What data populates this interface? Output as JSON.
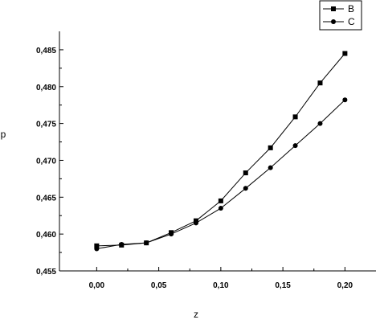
{
  "chart_data": {
    "type": "line",
    "title": "",
    "xlabel": "z",
    "ylabel": "p",
    "x": [
      0.0,
      0.02,
      0.04,
      0.06,
      0.08,
      0.1,
      0.12,
      0.14,
      0.16,
      0.18,
      0.2
    ],
    "xlim": [
      -0.03,
      0.225
    ],
    "ylim": [
      0.455,
      0.4875
    ],
    "xticks": [
      0.0,
      0.05,
      0.1,
      0.15,
      0.2
    ],
    "xtick_labels": [
      "0,00",
      "0,05",
      "0,10",
      "0,15",
      "0,20"
    ],
    "yticks": [
      0.455,
      0.46,
      0.465,
      0.47,
      0.475,
      0.48,
      0.485
    ],
    "ytick_labels": [
      "0,455",
      "0,460",
      "0,465",
      "0,470",
      "0,475",
      "0,480",
      "0,485"
    ],
    "grid": false,
    "legend_position": "top-right",
    "series": [
      {
        "name": "B",
        "marker": "square",
        "color": "#000000",
        "values": [
          0.4584,
          0.4585,
          0.4588,
          0.4602,
          0.4618,
          0.4645,
          0.4683,
          0.4717,
          0.4759,
          0.4805,
          0.4845
        ]
      },
      {
        "name": "C",
        "marker": "circle",
        "color": "#000000",
        "values": [
          0.458,
          0.4586,
          0.4588,
          0.46,
          0.4615,
          0.4635,
          0.4662,
          0.469,
          0.472,
          0.475,
          0.4782
        ]
      }
    ]
  }
}
